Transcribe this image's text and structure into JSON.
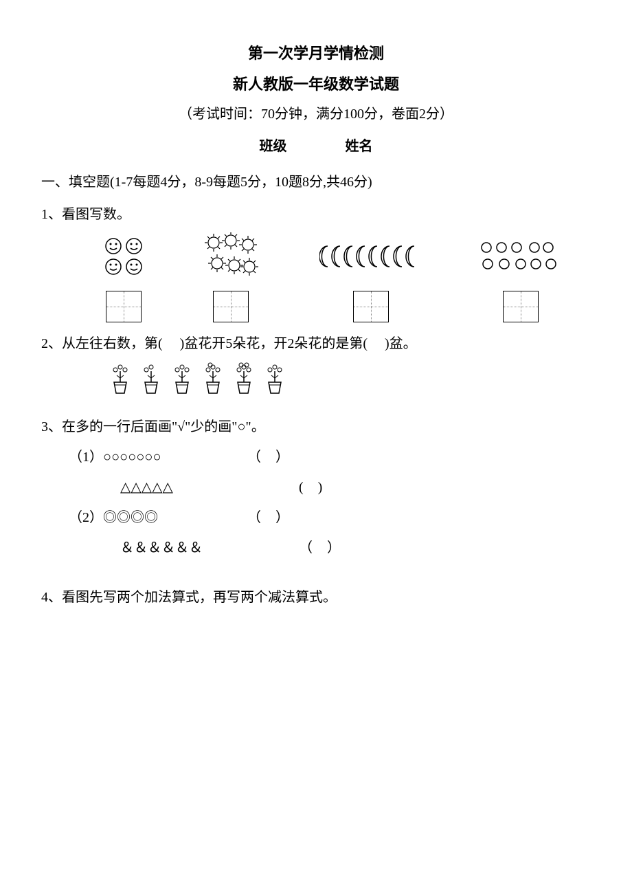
{
  "header": {
    "title1": "第一次学月学情检测",
    "title2": "新人教版一年级数学试题",
    "exam_info": "（考试时间：70分钟，满分100分，卷面2分）",
    "class_label": "班级",
    "name_label": "姓名"
  },
  "section1": {
    "title": "一、填空题(1-7每题4分，8-9每题5分，10题8分,共46分)",
    "q1": {
      "prompt": "1、看图写数。",
      "groups": [
        {
          "type": "smiley",
          "count": 4
        },
        {
          "type": "sun",
          "count": 6
        },
        {
          "type": "moon",
          "count": 8
        },
        {
          "type": "circle",
          "count": 10
        }
      ]
    },
    "q2": {
      "prompt_pre": "2、从左往右数，第(",
      "prompt_mid": ")盆花开5朵花，开2朵花的是第(",
      "prompt_post": ")盆。",
      "pots": [
        3,
        2,
        3,
        4,
        5,
        3
      ]
    },
    "q3": {
      "prompt": "3、在多的一行后面画\"√\"少的画\"○\"。",
      "rows": [
        {
          "label": "（1）○○○○○○○",
          "paren": "（          ）"
        },
        {
          "label": "△△△△△",
          "paren": "(          )"
        },
        {
          "label": "（2）◎◎◎◎",
          "paren": "（          ）"
        },
        {
          "label": "＆＆＆＆＆＆",
          "paren": "（          ）"
        }
      ]
    },
    "q4": {
      "prompt": "4、看图先写两个加法算式，再写两个减法算式。"
    }
  },
  "colors": {
    "text": "#000000",
    "bg": "#ffffff",
    "stroke": "#000000"
  }
}
